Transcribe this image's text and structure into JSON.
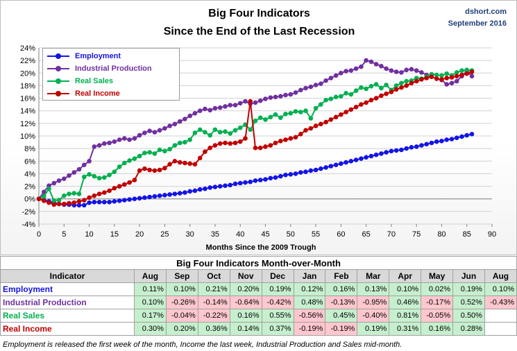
{
  "header": {
    "title_line1": "Big Four Indicators",
    "title_line2": "Since the End of the Last Recession",
    "credit_site": "dshort.com",
    "credit_date": "September 2016"
  },
  "chart_data": {
    "type": "line",
    "xlabel": "Months Since the 2009 Trough",
    "ylabel": "",
    "xlim": [
      0,
      90
    ],
    "ylim": [
      -4,
      24
    ],
    "xticks": [
      0,
      5,
      10,
      15,
      20,
      25,
      30,
      35,
      40,
      45,
      50,
      55,
      60,
      65,
      70,
      75,
      80,
      85,
      90
    ],
    "yticks": [
      -4,
      -2,
      0,
      2,
      4,
      6,
      8,
      10,
      12,
      14,
      16,
      18,
      20,
      22,
      24
    ],
    "y_tick_format": "percent",
    "grid": "horizontal",
    "legend_position": "top-left",
    "series": [
      {
        "name": "Employment",
        "color": "#1414e6",
        "values": [
          0.0,
          -0.2,
          -0.4,
          -0.6,
          -0.8,
          -0.9,
          -0.9,
          -1.0,
          -1.0,
          -1.0,
          -0.6,
          -0.5,
          -0.5,
          -0.5,
          -0.5,
          -0.4,
          -0.3,
          -0.2,
          -0.1,
          0.0,
          0.1,
          0.2,
          0.3,
          0.4,
          0.5,
          0.6,
          0.7,
          0.8,
          0.9,
          1.0,
          1.2,
          1.3,
          1.5,
          1.6,
          1.8,
          1.9,
          2.0,
          2.1,
          2.2,
          2.4,
          2.5,
          2.6,
          2.7,
          2.9,
          3.0,
          3.1,
          3.3,
          3.4,
          3.6,
          3.8,
          3.9,
          4.0,
          4.2,
          4.3,
          4.5,
          4.6,
          4.8,
          5.0,
          5.2,
          5.4,
          5.6,
          5.8,
          6.0,
          6.2,
          6.4,
          6.6,
          6.8,
          7.0,
          7.2,
          7.4,
          7.6,
          7.7,
          7.8,
          8.0,
          8.2,
          8.3,
          8.5,
          8.7,
          8.9,
          9.1,
          9.2,
          9.4,
          9.5,
          9.7,
          9.9,
          10.1,
          10.3
        ]
      },
      {
        "name": "Industrial Production",
        "color": "#7030a0",
        "values": [
          0.0,
          1.1,
          2.1,
          2.5,
          2.9,
          3.2,
          3.7,
          4.2,
          4.7,
          5.4,
          6.0,
          8.3,
          8.5,
          8.8,
          8.9,
          9.1,
          9.4,
          9.6,
          9.4,
          9.6,
          10.1,
          10.5,
          10.8,
          10.6,
          10.9,
          11.2,
          11.6,
          11.9,
          12.3,
          12.7,
          13.2,
          13.6,
          14.0,
          14.3,
          14.1,
          14.4,
          14.5,
          14.7,
          14.9,
          14.9,
          15.2,
          15.5,
          15.1,
          15.3,
          15.6,
          15.9,
          16.1,
          16.2,
          16.3,
          16.5,
          16.6,
          16.9,
          17.3,
          17.6,
          17.8,
          18.1,
          18.3,
          18.8,
          19.2,
          19.6,
          20.0,
          20.3,
          20.4,
          20.7,
          21.0,
          22.0,
          21.8,
          21.4,
          21.1,
          20.7,
          20.4,
          20.2,
          20.1,
          20.5,
          20.6,
          20.4,
          20.1,
          19.7,
          19.4,
          19.1,
          18.9,
          18.2,
          18.4,
          18.7,
          19.5,
          20.3,
          19.5
        ]
      },
      {
        "name": "Real Sales",
        "color": "#00b050",
        "values": [
          0.0,
          0.4,
          1.6,
          -0.3,
          -0.2,
          0.5,
          0.8,
          0.9,
          0.8,
          3.5,
          3.9,
          3.6,
          3.3,
          3.4,
          3.8,
          4.3,
          5.1,
          5.7,
          6.1,
          6.4,
          6.8,
          7.3,
          7.4,
          7.2,
          7.8,
          7.6,
          7.9,
          8.5,
          8.9,
          9.0,
          9.4,
          10.5,
          11.0,
          10.6,
          10.1,
          11.0,
          10.6,
          10.7,
          10.4,
          10.9,
          11.3,
          11.8,
          11.0,
          12.4,
          12.9,
          12.6,
          13.0,
          13.4,
          12.9,
          13.5,
          13.6,
          13.9,
          13.8,
          14.0,
          12.8,
          14.4,
          15.0,
          15.7,
          15.9,
          16.2,
          16.3,
          16.8,
          16.6,
          17.2,
          17.7,
          17.5,
          17.9,
          18.2,
          17.6,
          18.1,
          17.3,
          18.0,
          18.4,
          18.7,
          18.8,
          19.2,
          19.1,
          19.4,
          19.8,
          19.7,
          19.6,
          19.9,
          19.6,
          20.1,
          20.4,
          20.5,
          20.4
        ]
      },
      {
        "name": "Real Income",
        "color": "#c00000",
        "values": [
          0.0,
          -0.3,
          -0.6,
          -0.9,
          -0.8,
          -0.8,
          -0.7,
          -0.6,
          -0.4,
          -0.2,
          0.2,
          0.5,
          0.8,
          1.0,
          1.3,
          1.7,
          2.0,
          2.3,
          2.6,
          3.0,
          4.5,
          4.8,
          4.6,
          4.5,
          4.6,
          4.9,
          5.5,
          6.0,
          5.8,
          5.7,
          5.6,
          5.5,
          6.5,
          7.5,
          8.1,
          8.5,
          8.8,
          8.9,
          8.8,
          8.9,
          9.1,
          9.6,
          15.5,
          8.1,
          8.1,
          8.3,
          8.5,
          8.9,
          9.2,
          9.4,
          9.6,
          9.8,
          10.3,
          10.9,
          11.2,
          11.6,
          11.9,
          12.2,
          12.6,
          13.0,
          13.4,
          13.8,
          14.2,
          14.6,
          15.0,
          15.3,
          15.7,
          16.0,
          16.4,
          16.7,
          17.0,
          17.4,
          17.7,
          18.0,
          18.4,
          18.7,
          19.0,
          19.2,
          19.4,
          19.1,
          19.0,
          19.2,
          19.3,
          19.5,
          19.7,
          19.9,
          20.2
        ]
      }
    ]
  },
  "table": {
    "title": "Big Four Indicators Month-over-Month",
    "header_label": "Indicator",
    "months": [
      "Aug",
      "Sep",
      "Oct",
      "Nov",
      "Dec",
      "Jan",
      "Feb",
      "Mar",
      "Apr",
      "May",
      "Jun",
      "Aug"
    ],
    "rows": [
      {
        "name": "Employment",
        "color": "#1414e6",
        "values": [
          "0.11%",
          "0.10%",
          "0.21%",
          "0.20%",
          "0.19%",
          "0.12%",
          "0.16%",
          "0.13%",
          "0.10%",
          "0.02%",
          "0.19%",
          "0.10%"
        ]
      },
      {
        "name": "Industrial Production",
        "color": "#7030a0",
        "values": [
          "0.10%",
          "-0.26%",
          "-0.14%",
          "-0.64%",
          "-0.42%",
          "0.48%",
          "-0.13%",
          "-0.95%",
          "0.46%",
          "-0.17%",
          "0.52%",
          "-0.43%"
        ]
      },
      {
        "name": "Real Sales",
        "color": "#00b050",
        "values": [
          "0.17%",
          "-0.04%",
          "-0.22%",
          "0.16%",
          "0.55%",
          "-0.56%",
          "0.45%",
          "-0.40%",
          "0.81%",
          "-0.05%",
          "0.50%",
          ""
        ]
      },
      {
        "name": "Real Income",
        "color": "#c00000",
        "values": [
          "0.30%",
          "0.20%",
          "0.36%",
          "0.14%",
          "0.37%",
          "-0.19%",
          "-0.19%",
          "0.19%",
          "0.31%",
          "0.16%",
          "0.28%",
          ""
        ]
      }
    ]
  },
  "footnote": "Employment is released the first week of the month, Income the last week, Industrial Production and Sales mid-month."
}
